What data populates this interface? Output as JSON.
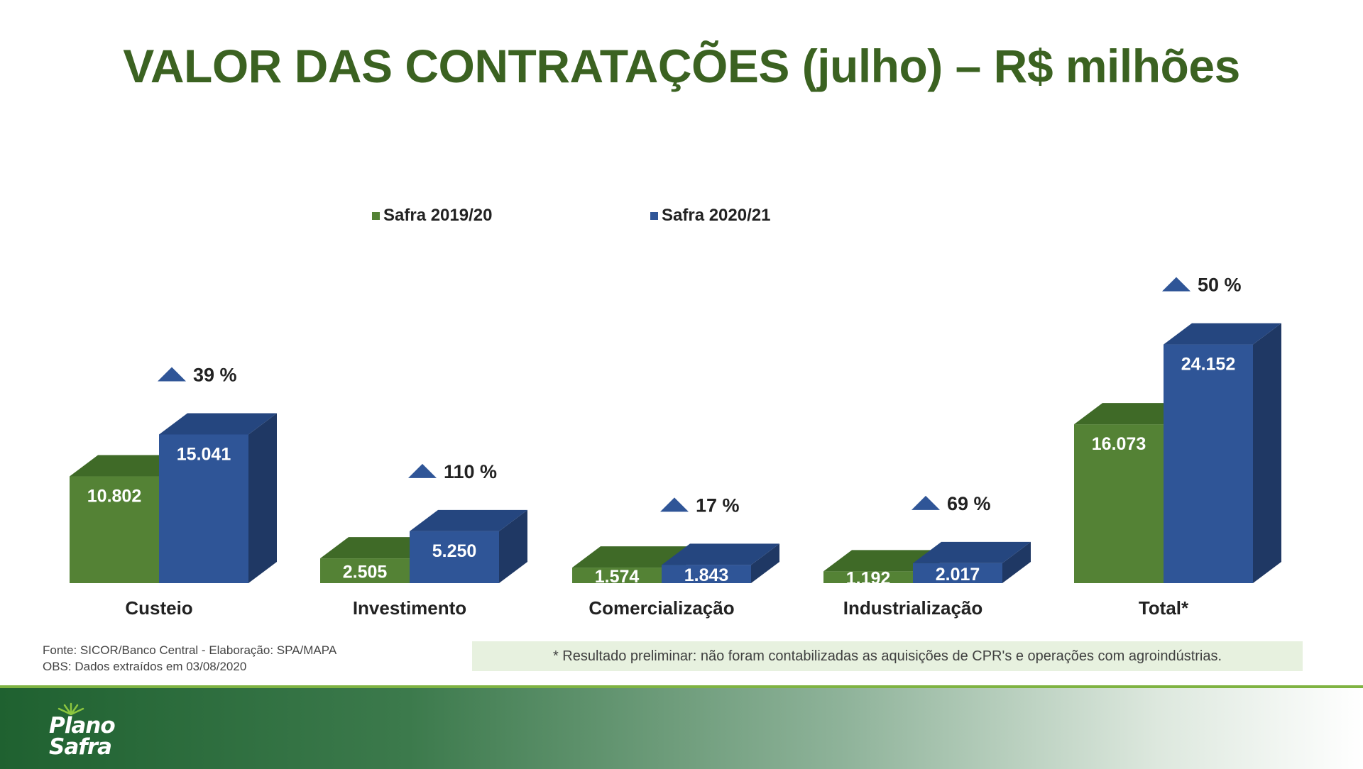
{
  "title": "VALOR DAS CONTRATAÇÕES (julho) – R$ milhões",
  "legend": [
    {
      "label": "Safra 2019/20",
      "color": "#548235"
    },
    {
      "label": "Safra 2020/21",
      "color": "#2f5597"
    }
  ],
  "chart_data": {
    "type": "bar",
    "categories": [
      "Custeio",
      "Investimento",
      "Comercialização",
      "Industrialização",
      "Total*"
    ],
    "series": [
      {
        "name": "Safra 2019/20",
        "values": [
          10802,
          2505,
          1574,
          1192,
          16073
        ],
        "labels": [
          "10.802",
          "2.505",
          "1.574",
          "1.192",
          "16.073"
        ]
      },
      {
        "name": "Safra 2020/21",
        "values": [
          15041,
          5250,
          1843,
          2017,
          24152
        ],
        "labels": [
          "15.041",
          "5.250",
          "1.843",
          "2.017",
          "24.152"
        ]
      }
    ],
    "growth": [
      "39 %",
      "110 %",
      "17 %",
      "69 %",
      "50 %"
    ],
    "legend_position": "top",
    "grid": false
  },
  "source": {
    "line1": "Fonte: SICOR/Banco Central  - Elaboração: SPA/MAPA",
    "line2": "OBS: Dados extraídos em 03/08/2020"
  },
  "note": "* Resultado preliminar: não foram contabilizadas as aquisições de CPR's e operações com agroindústrias.",
  "logo": {
    "line1": "Plano",
    "line2": "Safra"
  },
  "colors": {
    "green_front": "#548235",
    "green_top": "#3f6a27",
    "green_side": "#375c22",
    "blue_front": "#2f5597",
    "blue_top": "#25467f",
    "blue_side": "#1f3864",
    "title": "#3b6221",
    "arrow": "#2f5597"
  }
}
